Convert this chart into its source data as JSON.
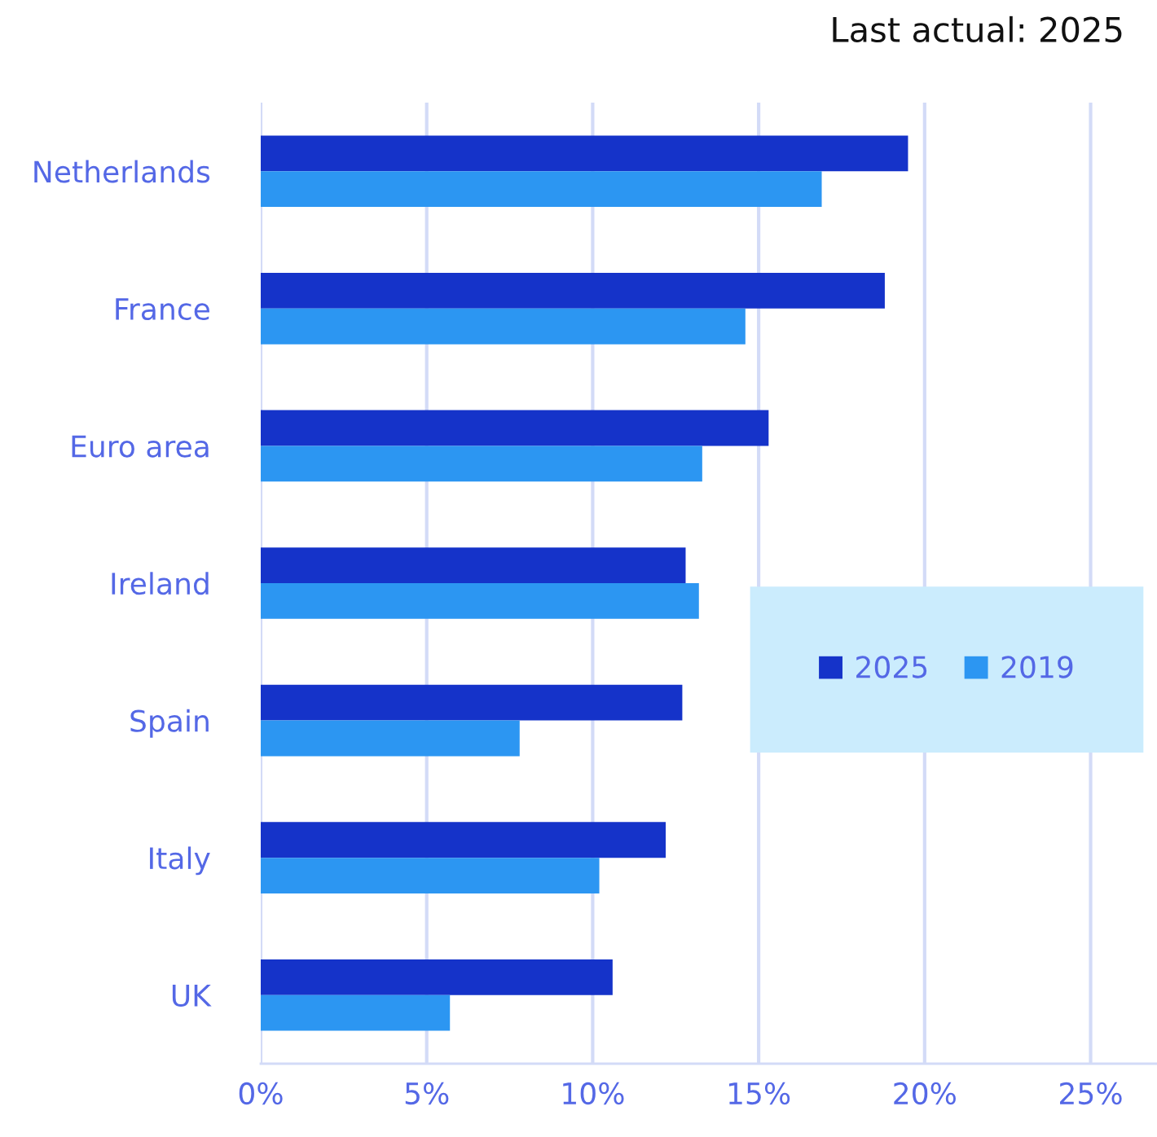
{
  "chart_data": {
    "type": "bar",
    "orientation": "horizontal",
    "annotations": [
      "Last actual: 2025"
    ],
    "categories": [
      "Netherlands",
      "France",
      "Euro area",
      "Ireland",
      "Spain",
      "Italy",
      "UK"
    ],
    "series": [
      {
        "name": "2025",
        "color": "#1533c9",
        "values": [
          19.5,
          18.8,
          15.3,
          12.8,
          12.7,
          12.2,
          10.6
        ]
      },
      {
        "name": "2019",
        "color": "#2c96f2",
        "values": [
          16.9,
          14.6,
          13.3,
          13.2,
          7.8,
          10.2,
          5.7
        ]
      }
    ],
    "xlim": [
      0,
      27
    ],
    "xticks": [
      {
        "value": 0,
        "label": "0%"
      },
      {
        "value": 5,
        "label": "5%"
      },
      {
        "value": 10,
        "label": "10%"
      },
      {
        "value": 15,
        "label": "15%"
      },
      {
        "value": 20,
        "label": "20%"
      },
      {
        "value": 25,
        "label": "25%"
      }
    ],
    "grid": "x",
    "legend": "right"
  }
}
